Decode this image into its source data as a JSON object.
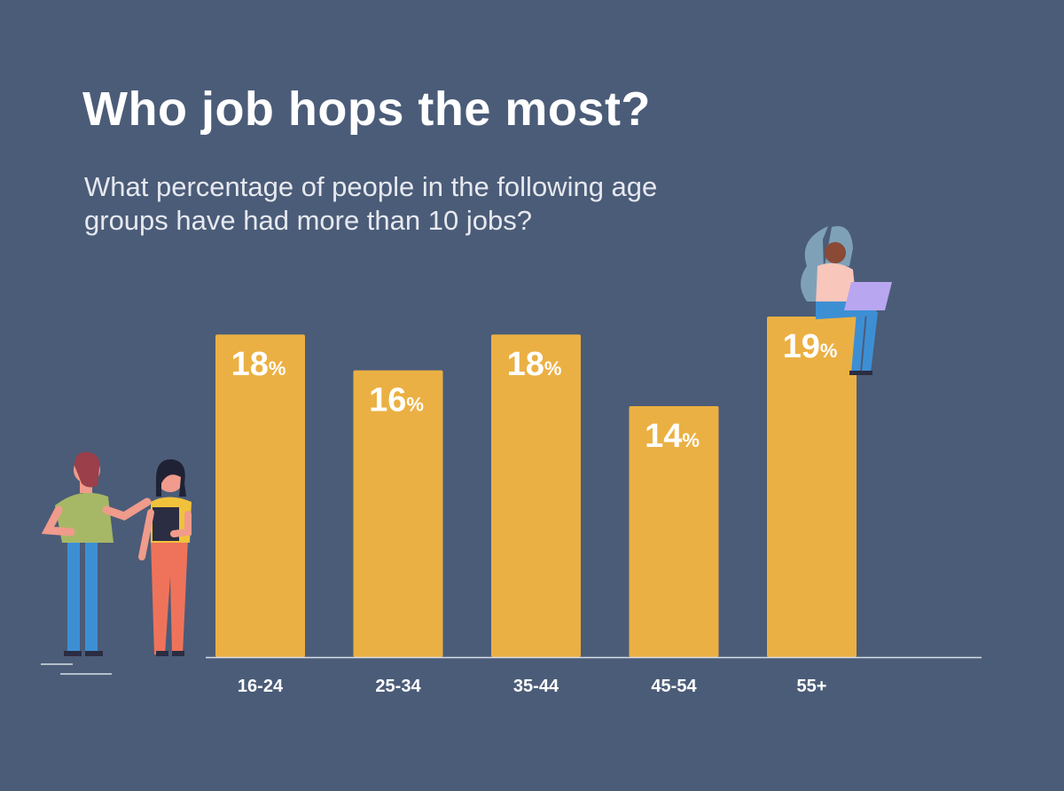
{
  "chart_data": {
    "type": "bar",
    "title": "Who job hops the most?",
    "subtitle": "What percentage of people in the following age groups have had more than 10 jobs?",
    "categories": [
      "16-24",
      "25-34",
      "35-44",
      "45-54",
      "55+"
    ],
    "values": [
      18,
      16,
      18,
      14,
      19
    ],
    "value_labels": [
      "18%",
      "16%",
      "18%",
      "14%",
      "19%"
    ],
    "color": "#ebb043"
  }
}
